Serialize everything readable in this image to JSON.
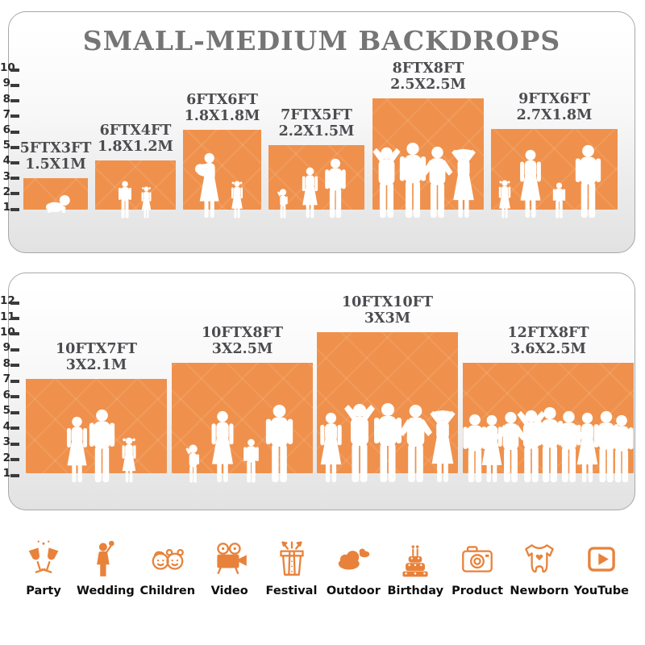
{
  "title": "SMALL-MEDIUM BACKDROPS",
  "colors": {
    "backdrop_orange": "#EF914C",
    "icon_orange": "#E8823B",
    "title_gray": "#757575",
    "label_gray": "#4C4C50"
  },
  "panels": [
    {
      "name": "small-medium-top",
      "ruler": {
        "min": 1,
        "max": 10
      },
      "backdrops": [
        {
          "size_ft": "5FTX3FT",
          "size_m": "1.5X1M"
        },
        {
          "size_ft": "6FTX4FT",
          "size_m": "1.8X1.2M"
        },
        {
          "size_ft": "6FTX6FT",
          "size_m": "1.8X1.8M"
        },
        {
          "size_ft": "7FTX5FT",
          "size_m": "2.2X1.5M"
        },
        {
          "size_ft": "8FTX8FT",
          "size_m": "2.5X2.5M"
        },
        {
          "size_ft": "9FTX6FT",
          "size_m": "2.7X1.8M"
        }
      ]
    },
    {
      "name": "small-medium-bottom",
      "ruler": {
        "min": 1,
        "max": 12
      },
      "backdrops": [
        {
          "size_ft": "10FTX7FT",
          "size_m": "3X2.1M"
        },
        {
          "size_ft": "10FTX8FT",
          "size_m": "3X2.5M"
        },
        {
          "size_ft": "10FTX10FT",
          "size_m": "3X3M"
        },
        {
          "size_ft": "12FTX8FT",
          "size_m": "3.6X2.5M"
        }
      ]
    }
  ],
  "categories": [
    {
      "label": "Party",
      "icon": "party-icon"
    },
    {
      "label": "Wedding",
      "icon": "wedding-icon"
    },
    {
      "label": "Children",
      "icon": "children-icon"
    },
    {
      "label": "Video",
      "icon": "video-icon"
    },
    {
      "label": "Festival",
      "icon": "festival-icon"
    },
    {
      "label": "Outdoor",
      "icon": "outdoor-icon"
    },
    {
      "label": "Birthday",
      "icon": "birthday-icon"
    },
    {
      "label": "Product",
      "icon": "product-icon"
    },
    {
      "label": "Newborn",
      "icon": "newborn-icon"
    },
    {
      "label": "YouTube",
      "icon": "youtube-icon"
    }
  ]
}
